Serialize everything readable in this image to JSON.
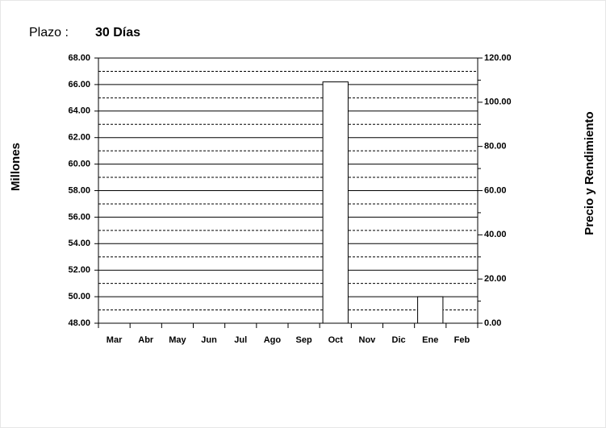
{
  "chart_data": {
    "type": "bar",
    "title_label": "Plazo :",
    "title_value": "30 Días",
    "y_label": "Millones",
    "y2_label": "Precio y Rendimiento",
    "categories": [
      "Mar",
      "Abr",
      "May",
      "Jun",
      "Jul",
      "Ago",
      "Sep",
      "Oct",
      "Nov",
      "Dic",
      "Ene",
      "Feb"
    ],
    "values": [
      null,
      null,
      null,
      null,
      null,
      null,
      null,
      66.2,
      null,
      null,
      50.0,
      null
    ],
    "color": "#ffffff",
    "ylim": [
      48,
      68
    ],
    "yticks": [
      {
        "value": 48,
        "label": "48.00"
      },
      {
        "value": 50,
        "label": "50.00"
      },
      {
        "value": 52,
        "label": "52.00"
      },
      {
        "value": 54,
        "label": "54.00"
      },
      {
        "value": 56,
        "label": "56.00"
      },
      {
        "value": 58,
        "label": "58.00"
      },
      {
        "value": 60,
        "label": "60.00"
      },
      {
        "value": 62,
        "label": "62.00"
      },
      {
        "value": 64,
        "label": "64.00"
      },
      {
        "value": 66,
        "label": "66.00"
      },
      {
        "value": 68,
        "label": "68.00"
      }
    ],
    "y2lim": [
      0,
      120
    ],
    "y2ticks": [
      {
        "value": 0,
        "label": "0.00"
      },
      {
        "value": 20,
        "label": "20.00"
      },
      {
        "value": 40,
        "label": "40.00"
      },
      {
        "value": 60,
        "label": "60.00"
      },
      {
        "value": 80,
        "label": "80.00"
      },
      {
        "value": 100,
        "label": "100.00"
      },
      {
        "value": 120,
        "label": "120.00"
      }
    ],
    "grid": true
  }
}
